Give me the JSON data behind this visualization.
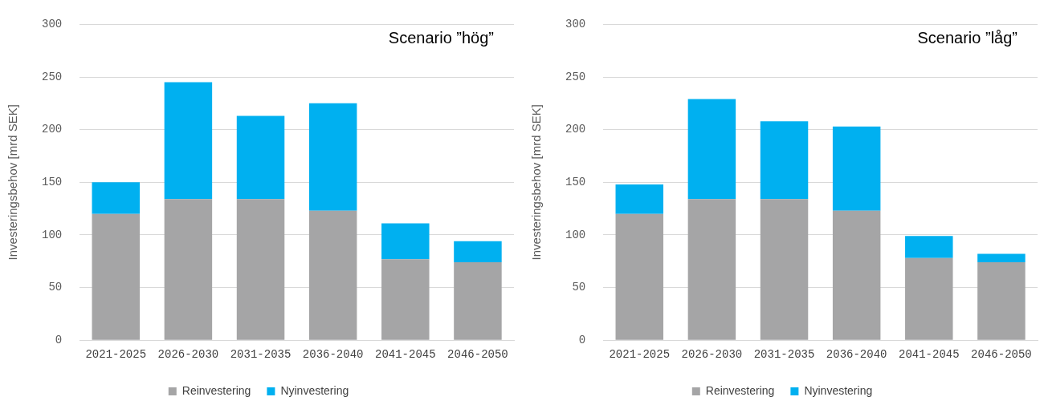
{
  "chart_data": [
    {
      "type": "bar",
      "title": "Scenario ”hög”",
      "ylabel": "Investeringsbehov [mrd SEK]",
      "stacked": true,
      "categories": [
        "2021-2025",
        "2026-2030",
        "2031-2035",
        "2036-2040",
        "2041-2045",
        "2046-2050"
      ],
      "series": [
        {
          "name": "Reinvestering",
          "color": "#a5a5a6",
          "values": [
            120,
            134,
            134,
            123,
            77,
            74
          ]
        },
        {
          "name": "Nyinvestering",
          "color": "#00b0f0",
          "values": [
            30,
            111,
            79,
            102,
            34,
            20
          ]
        }
      ],
      "ylim": [
        0,
        300
      ],
      "yticks": [
        0,
        50,
        100,
        150,
        200,
        250,
        300
      ],
      "grid": "y",
      "legend": "bottom"
    },
    {
      "type": "bar",
      "title": "Scenario ”låg”",
      "ylabel": "Investeringsbehov [mrd SEK]",
      "stacked": true,
      "categories": [
        "2021-2025",
        "2026-2030",
        "2031-2035",
        "2036-2040",
        "2041-2045",
        "2046-2050"
      ],
      "series": [
        {
          "name": "Reinvestering",
          "color": "#a5a5a6",
          "values": [
            120,
            134,
            134,
            123,
            78,
            74
          ]
        },
        {
          "name": "Nyinvestering",
          "color": "#00b0f0",
          "values": [
            28,
            95,
            74,
            80,
            21,
            8
          ]
        }
      ],
      "ylim": [
        0,
        300
      ],
      "yticks": [
        0,
        50,
        100,
        150,
        200,
        250,
        300
      ],
      "grid": "y",
      "legend": "bottom"
    }
  ]
}
